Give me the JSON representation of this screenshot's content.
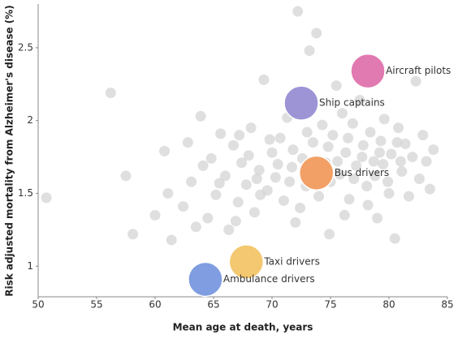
{
  "chart_data": {
    "type": "scatter",
    "x_label": "Mean age at death, years",
    "y_label": "Risk adjusted mortality from Alzheimer's disease (%)",
    "xlim": [
      50,
      85
    ],
    "ylim": [
      0.79,
      2.8
    ],
    "xticks": [
      50,
      55,
      60,
      65,
      70,
      75,
      80,
      85
    ],
    "yticks": [
      1,
      1.5,
      2,
      2.5
    ],
    "series": [
      {
        "color": "#d4d4d4",
        "x": [
          50.7,
          56.2,
          58.1,
          60.8,
          61.1,
          61.4,
          62.4,
          63.1,
          63.9,
          64.1,
          64.5,
          65.2,
          65.6,
          66.0,
          66.3,
          66.7,
          67.1,
          67.4,
          67.8,
          68.2,
          68.5,
          68.9,
          69.3,
          69.6,
          70.0,
          70.3,
          70.7,
          71.0,
          71.3,
          71.7,
          72.0,
          72.2,
          72.6,
          72.9,
          73.2,
          73.5,
          73.8,
          74.0,
          74.3,
          74.6,
          74.9,
          75.2,
          75.5,
          75.8,
          76.0,
          76.3,
          76.6,
          76.9,
          77.2,
          77.5,
          77.8,
          78.1,
          78.4,
          78.7,
          79.0,
          79.3,
          79.6,
          79.9,
          80.2,
          80.5,
          80.8,
          81.1,
          81.4,
          81.7,
          82.0,
          82.3,
          82.6,
          82.9,
          83.2,
          83.5,
          83.8,
          62.8,
          64.8,
          66.9,
          68.0,
          69.0,
          70.5,
          71.5,
          73.0,
          74.8,
          75.0,
          76.5,
          77.0,
          78.8,
          79.5,
          80.0,
          81.0,
          65.5,
          67.2,
          69.8,
          71.8,
          73.3,
          75.6,
          77.7,
          79.2,
          80.7,
          68.7,
          72.4,
          76.2,
          78.2,
          63.5,
          60.0,
          57.5
        ],
        "values": [
          1.47,
          2.19,
          1.22,
          1.79,
          1.5,
          1.18,
          1.41,
          1.58,
          2.03,
          1.69,
          1.33,
          1.49,
          1.91,
          1.62,
          1.25,
          1.83,
          1.44,
          1.71,
          1.56,
          1.95,
          1.37,
          1.66,
          2.28,
          1.52,
          1.78,
          1.61,
          1.88,
          1.45,
          2.02,
          1.68,
          1.3,
          2.75,
          1.74,
          1.55,
          2.48,
          1.85,
          2.6,
          1.48,
          1.97,
          1.71,
          1.22,
          1.9,
          2.24,
          1.63,
          2.05,
          1.78,
          1.46,
          1.98,
          1.69,
          2.14,
          1.83,
          1.55,
          1.92,
          1.72,
          1.33,
          1.86,
          2.01,
          1.58,
          1.77,
          1.19,
          1.95,
          1.65,
          1.84,
          1.48,
          1.75,
          2.27,
          1.6,
          1.9,
          1.72,
          1.53,
          1.8,
          1.85,
          1.74,
          1.31,
          1.76,
          1.49,
          1.7,
          1.58,
          1.92,
          1.82,
          1.58,
          1.88,
          1.6,
          1.62,
          1.7,
          1.5,
          1.72,
          1.57,
          1.9,
          1.87,
          1.8,
          1.65,
          1.72,
          1.75,
          1.78,
          1.85,
          1.6,
          1.4,
          1.35,
          1.42,
          1.27,
          1.35,
          1.62
        ]
      }
    ],
    "highlights": [
      {
        "label": "Aircraft pilots",
        "x": 78.2,
        "y": 2.34,
        "color": "#e07ab0"
      },
      {
        "label": "Ship captains",
        "x": 72.5,
        "y": 2.12,
        "color": "#9d94d6"
      },
      {
        "label": "Bus drivers",
        "x": 73.8,
        "y": 1.64,
        "color": "#f2a066"
      },
      {
        "label": "Taxi drivers",
        "x": 67.8,
        "y": 1.03,
        "color": "#f4c870"
      },
      {
        "label": "Ambulance drivers",
        "x": 64.3,
        "y": 0.91,
        "color": "#7f9de0"
      }
    ]
  }
}
